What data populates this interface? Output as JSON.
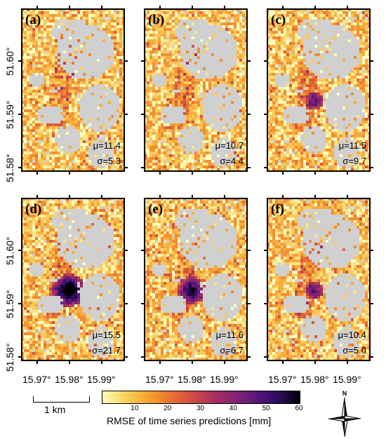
{
  "panels": [
    {
      "id": "a",
      "label": "(a)",
      "mu": "μ=11.4",
      "sigma": "σ=5.3",
      "hot": 0
    },
    {
      "id": "b",
      "label": "(b)",
      "mu": "μ=10.7",
      "sigma": "σ=4.4",
      "hot": 0
    },
    {
      "id": "c",
      "label": "(c)",
      "mu": "μ=11.5",
      "sigma": "σ=9.7",
      "hot": 1
    },
    {
      "id": "d",
      "label": "(d)",
      "mu": "μ=15.5",
      "sigma": "σ=21.7",
      "hot": 3
    },
    {
      "id": "e",
      "label": "(e)",
      "mu": "μ=11.6",
      "sigma": "σ=6.7",
      "hot": 2
    },
    {
      "id": "f",
      "label": "(f)",
      "mu": "μ=10.4",
      "sigma": "σ=5.0",
      "hot": 1
    }
  ],
  "y_ticks": [
    "51.60°",
    "51.59°",
    "51.58°"
  ],
  "x_ticks": [
    "15.97°",
    "15.98°",
    "15.99°"
  ],
  "scale_bar_label": "1 km",
  "colorbar": {
    "ticks": [
      "10",
      "20",
      "30",
      "40",
      "50",
      "60"
    ],
    "title": "RMSE of time series predictions [mm]",
    "colormap": "inferno_r",
    "range": [
      0,
      60
    ]
  },
  "north_label": "N",
  "colors": {
    "nodata": "#d0d0d0",
    "low": "#fcfdbf",
    "mid": "#ea7832",
    "high": "#000004"
  }
}
